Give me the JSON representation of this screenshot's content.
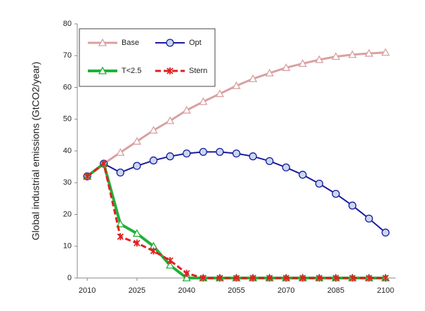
{
  "chart_data": {
    "type": "line",
    "y_label": "Global industrial emissions (GtCO2/year)",
    "x": [
      2010,
      2015,
      2020,
      2025,
      2030,
      2035,
      2040,
      2045,
      2050,
      2055,
      2060,
      2065,
      2070,
      2075,
      2080,
      2085,
      2090,
      2095,
      2100
    ],
    "xlim": [
      2007,
      2103
    ],
    "xticks": [
      2010,
      2025,
      2040,
      2055,
      2070,
      2085,
      2100
    ],
    "ylim": [
      0,
      80
    ],
    "yticks": [
      0,
      10,
      20,
      30,
      40,
      50,
      60,
      70,
      80
    ],
    "legend": "upper left",
    "series": [
      {
        "name": "Base",
        "color": "#d9a0a0",
        "marker": "triangle",
        "width": 3,
        "values": [
          32,
          36,
          39.5,
          43,
          46.5,
          49.5,
          52.8,
          55.5,
          58,
          60.5,
          62.7,
          64.5,
          66.2,
          67.5,
          68.7,
          69.7,
          70.3,
          70.7,
          71
        ]
      },
      {
        "name": "Opt",
        "color": "#1a1a9c",
        "marker": "circle",
        "width": 2,
        "values": [
          32,
          36,
          33.2,
          35.3,
          37,
          38.3,
          39.2,
          39.7,
          39.7,
          39.2,
          38.3,
          36.8,
          34.8,
          32.5,
          29.7,
          26.5,
          22.8,
          18.7,
          14.3
        ]
      },
      {
        "name": "T<2.5",
        "color": "#22b03a",
        "marker": "triangle",
        "width": 4,
        "values": [
          32,
          36,
          17,
          14,
          10,
          4,
          0,
          0,
          0,
          0,
          0,
          0,
          0,
          0,
          0,
          0,
          0,
          0,
          0
        ]
      },
      {
        "name": "Stern",
        "color": "#e02020",
        "marker": "star",
        "width": 3,
        "dash": true,
        "values": [
          32,
          36,
          13,
          11,
          8.5,
          5.5,
          1.5,
          0,
          0,
          0,
          0,
          0,
          0,
          0,
          0,
          0,
          0,
          0,
          0
        ]
      }
    ]
  }
}
